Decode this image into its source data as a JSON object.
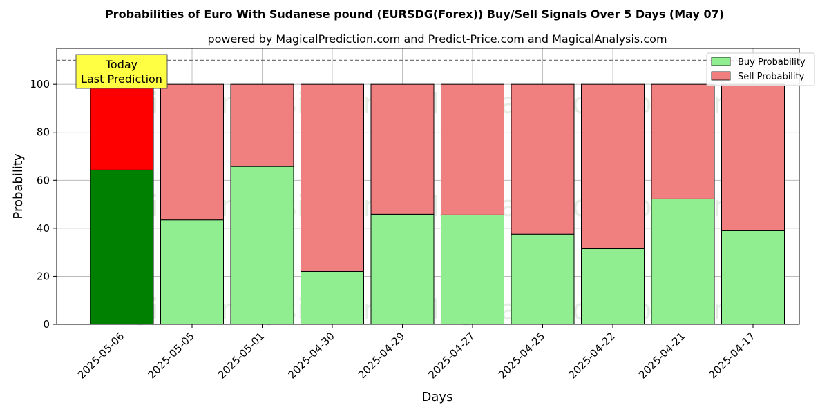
{
  "chart_data": {
    "type": "bar",
    "stacked": true,
    "title": "Probabilities of Euro With Sudanese pound (EURSDG(Forex)) Buy/Sell Signals Over 5 Days (May 07)",
    "subtitle": "powered by MagicalPrediction.com and Predict-Price.com and MagicalAnalysis.com",
    "xlabel": "Days",
    "ylabel": "Probability",
    "ylim": [
      0,
      115
    ],
    "yticks": [
      0,
      20,
      40,
      60,
      80,
      100
    ],
    "reference_line": 110,
    "grid": true,
    "legend_position": "top-right",
    "categories": [
      "2025-05-06",
      "2025-05-05",
      "2025-05-01",
      "2025-04-30",
      "2025-04-29",
      "2025-04-27",
      "2025-04-25",
      "2025-04-22",
      "2025-04-21",
      "2025-04-17"
    ],
    "series": [
      {
        "name": "Buy Probability",
        "values": [
          64.3,
          43.5,
          65.8,
          22.0,
          45.9,
          45.6,
          37.6,
          31.5,
          52.2,
          39.0
        ]
      },
      {
        "name": "Sell Probability",
        "values": [
          35.7,
          56.5,
          34.2,
          78.0,
          54.1,
          54.4,
          62.4,
          68.5,
          47.8,
          61.0
        ]
      }
    ],
    "annotation": {
      "line1": "Today",
      "line2": "Last Prediction"
    },
    "watermarks": [
      "MagicalAnalysis.com",
      "MagicalPrediction.com"
    ]
  },
  "colors": {
    "buy_today": "#008000",
    "sell_today": "#ff0000",
    "buy": "#90ee90",
    "sell": "#f08080",
    "annotation_bg": "#ffff44"
  }
}
